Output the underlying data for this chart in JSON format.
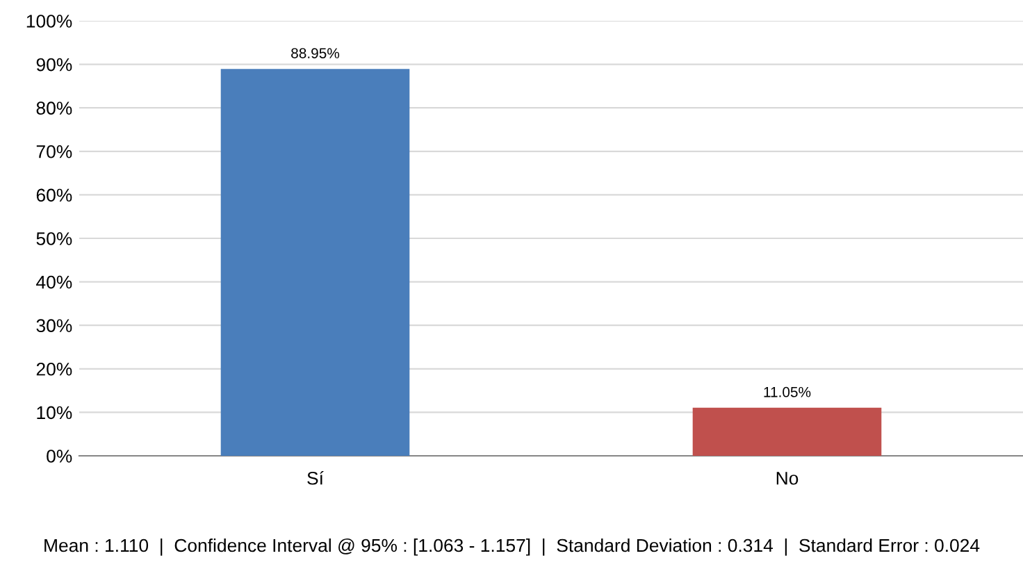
{
  "chart_data": {
    "type": "bar",
    "categories": [
      "Sí",
      "No"
    ],
    "values": [
      88.95,
      11.05
    ],
    "colors": [
      "#4a7ebb",
      "#c0504d"
    ],
    "value_labels": [
      "88.95%",
      "11.05%"
    ],
    "ylim": [
      0,
      100
    ],
    "yticks": [
      {
        "value": 0,
        "label": "0%"
      },
      {
        "value": 10,
        "label": "10%"
      },
      {
        "value": 20,
        "label": "20%"
      },
      {
        "value": 30,
        "label": "30%"
      },
      {
        "value": 40,
        "label": "40%"
      },
      {
        "value": 50,
        "label": "50%"
      },
      {
        "value": 60,
        "label": "60%"
      },
      {
        "value": 70,
        "label": "70%"
      },
      {
        "value": 80,
        "label": "80%"
      },
      {
        "value": 90,
        "label": "90%"
      },
      {
        "value": 100,
        "label": "100%"
      }
    ],
    "grid": "y",
    "annotations": [
      "Mean : 1.110  |  Confidence Interval @ 95% : [1.063 - 1.157]  |  Standard Deviation : 0.314  |  Standard Error : 0.024"
    ]
  }
}
